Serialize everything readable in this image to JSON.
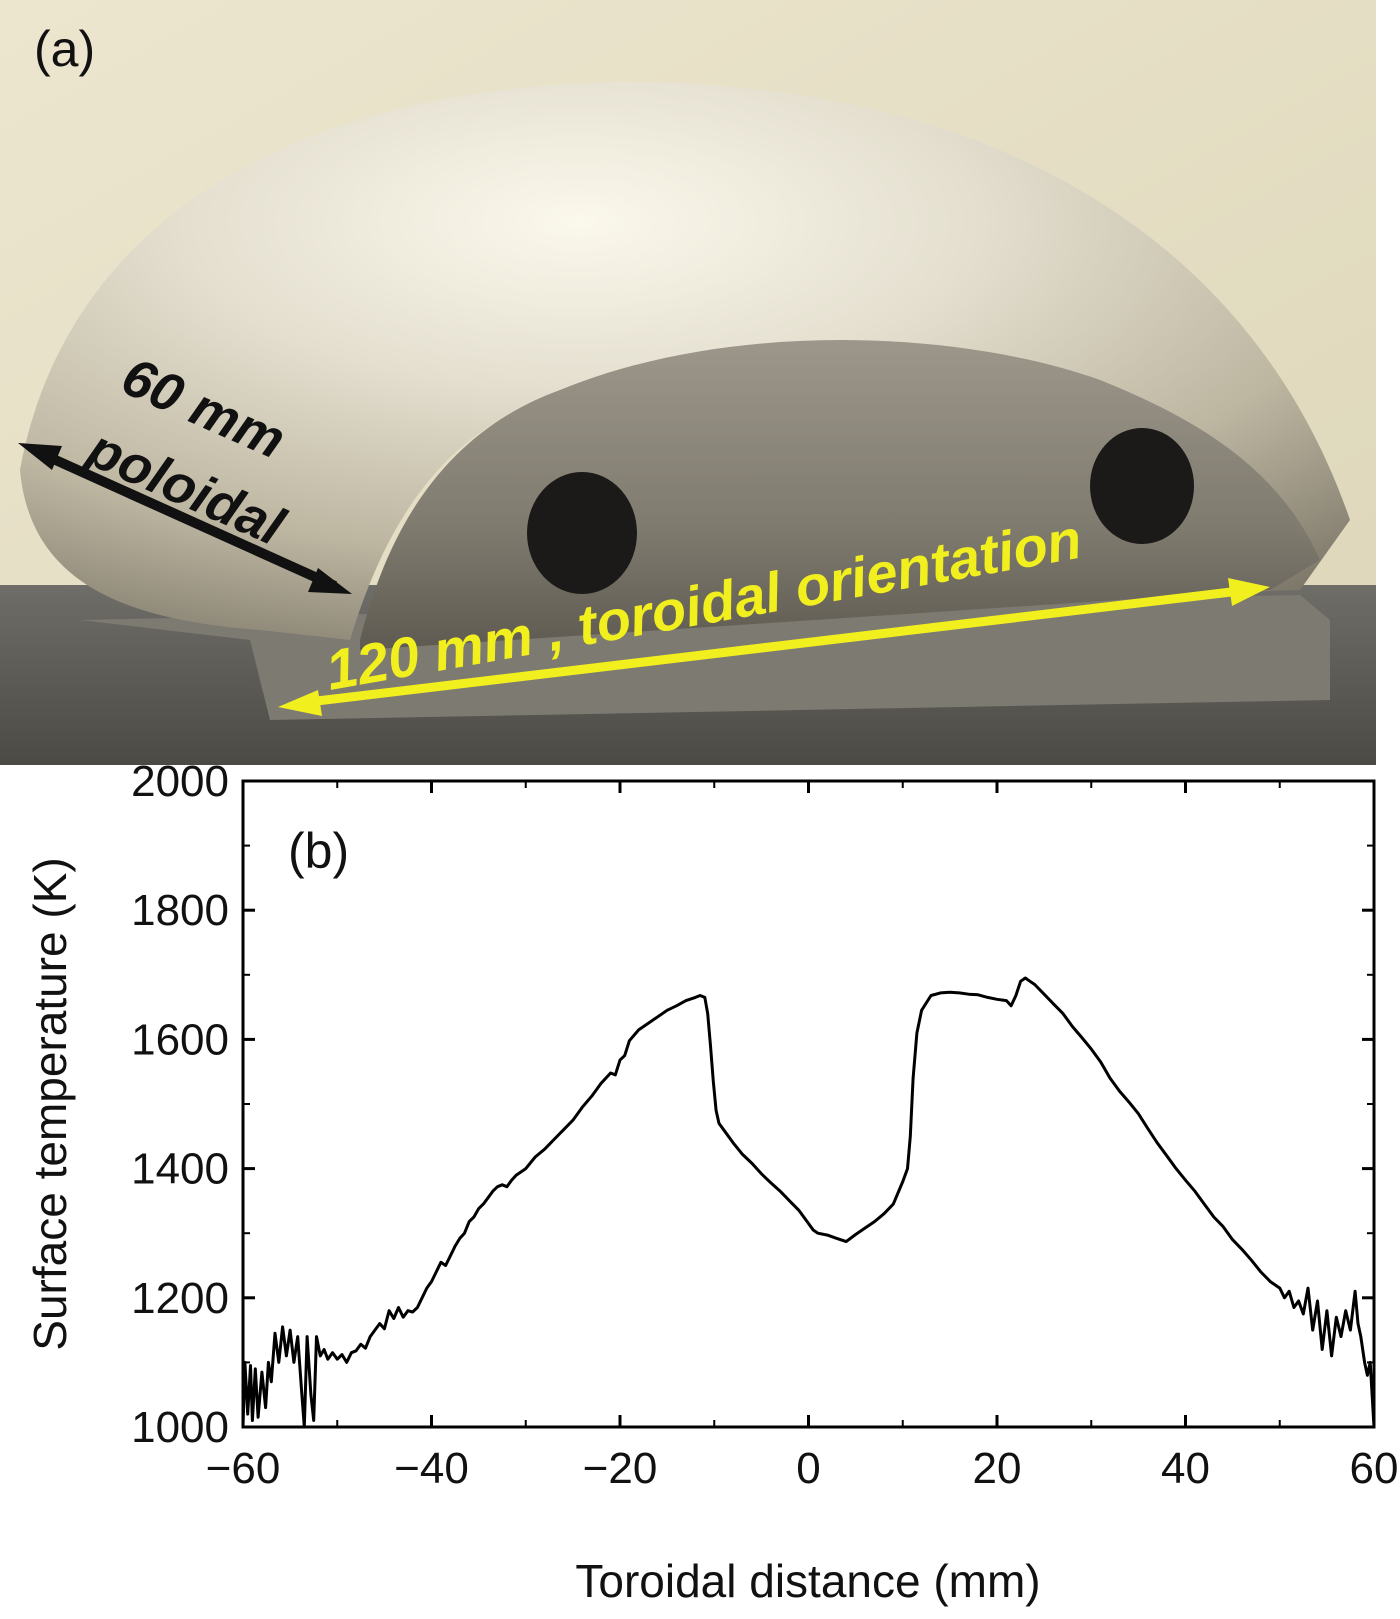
{
  "panel_a": {
    "label": "(a)",
    "poloidal_line1": "60 mm",
    "poloidal_line2": "poloidal",
    "toroidal_text": "120 mm , toroidal orientation",
    "arrow_colors": {
      "poloidal": "#111111",
      "toroidal": "#f2ef1e"
    }
  },
  "chart_data": {
    "type": "line",
    "panel_label": "(b)",
    "xlabel": "Toroidal distance (mm)",
    "ylabel": "Surface temperature (K)",
    "xlim": [
      -60,
      60
    ],
    "ylim": [
      1000,
      2000
    ],
    "x_ticks": [
      "−60",
      "−40",
      "−20",
      "0",
      "20",
      "40",
      "60"
    ],
    "y_ticks": [
      "1000",
      "1200",
      "1400",
      "1600",
      "1800",
      "2000"
    ],
    "grid": false,
    "series": [
      {
        "color": "#000000",
        "points": [
          [
            -60,
            1000
          ],
          [
            -59.8,
            1100
          ],
          [
            -59.5,
            1020
          ],
          [
            -59.2,
            1095
          ],
          [
            -59,
            1010
          ],
          [
            -58.7,
            1090
          ],
          [
            -58.4,
            1015
          ],
          [
            -58,
            1085
          ],
          [
            -57.6,
            1030
          ],
          [
            -57.3,
            1100
          ],
          [
            -57,
            1070
          ],
          [
            -56.6,
            1145
          ],
          [
            -56.2,
            1100
          ],
          [
            -55.8,
            1155
          ],
          [
            -55.4,
            1110
          ],
          [
            -55,
            1150
          ],
          [
            -54.6,
            1100
          ],
          [
            -54.2,
            1140
          ],
          [
            -53.8,
            1060
          ],
          [
            -53.5,
            1000
          ],
          [
            -53.2,
            1140
          ],
          [
            -52.8,
            1050
          ],
          [
            -52.5,
            1010
          ],
          [
            -52.2,
            1140
          ],
          [
            -51.8,
            1110
          ],
          [
            -51.4,
            1120
          ],
          [
            -51,
            1105
          ],
          [
            -50.5,
            1115
          ],
          [
            -50,
            1105
          ],
          [
            -49.5,
            1112
          ],
          [
            -49,
            1100
          ],
          [
            -48.5,
            1115
          ],
          [
            -48,
            1118
          ],
          [
            -47.5,
            1128
          ],
          [
            -47,
            1122
          ],
          [
            -46.5,
            1140
          ],
          [
            -46,
            1150
          ],
          [
            -45.5,
            1160
          ],
          [
            -45,
            1152
          ],
          [
            -44.5,
            1180
          ],
          [
            -44,
            1168
          ],
          [
            -43.5,
            1185
          ],
          [
            -43,
            1170
          ],
          [
            -42.5,
            1180
          ],
          [
            -42,
            1178
          ],
          [
            -41.5,
            1185
          ],
          [
            -41,
            1200
          ],
          [
            -40.5,
            1215
          ],
          [
            -40,
            1225
          ],
          [
            -39.5,
            1240
          ],
          [
            -39,
            1255
          ],
          [
            -38.5,
            1250
          ],
          [
            -38,
            1265
          ],
          [
            -37.5,
            1280
          ],
          [
            -37,
            1292
          ],
          [
            -36.5,
            1300
          ],
          [
            -36,
            1318
          ],
          [
            -35.5,
            1325
          ],
          [
            -35,
            1338
          ],
          [
            -34.5,
            1345
          ],
          [
            -34,
            1355
          ],
          [
            -33.5,
            1365
          ],
          [
            -33,
            1372
          ],
          [
            -32.5,
            1375
          ],
          [
            -32,
            1372
          ],
          [
            -31.5,
            1382
          ],
          [
            -31,
            1390
          ],
          [
            -30,
            1400
          ],
          [
            -29,
            1418
          ],
          [
            -28,
            1430
          ],
          [
            -27,
            1445
          ],
          [
            -26,
            1460
          ],
          [
            -25,
            1475
          ],
          [
            -24,
            1495
          ],
          [
            -23,
            1512
          ],
          [
            -22,
            1532
          ],
          [
            -21,
            1548
          ],
          [
            -20.5,
            1545
          ],
          [
            -20,
            1568
          ],
          [
            -19.5,
            1575
          ],
          [
            -19,
            1598
          ],
          [
            -18,
            1615
          ],
          [
            -17,
            1625
          ],
          [
            -16,
            1635
          ],
          [
            -15,
            1645
          ],
          [
            -14,
            1652
          ],
          [
            -13,
            1660
          ],
          [
            -12,
            1665
          ],
          [
            -11.5,
            1668
          ],
          [
            -11,
            1665
          ],
          [
            -10.7,
            1640
          ],
          [
            -10.4,
            1590
          ],
          [
            -10.1,
            1535
          ],
          [
            -9.8,
            1490
          ],
          [
            -9.5,
            1470
          ],
          [
            -9,
            1460
          ],
          [
            -8,
            1440
          ],
          [
            -7,
            1422
          ],
          [
            -6,
            1408
          ],
          [
            -5,
            1392
          ],
          [
            -4,
            1378
          ],
          [
            -3,
            1365
          ],
          [
            -2,
            1350
          ],
          [
            -1,
            1335
          ],
          [
            0,
            1315
          ],
          [
            0.5,
            1305
          ],
          [
            1,
            1300
          ],
          [
            2,
            1297
          ],
          [
            3,
            1292
          ],
          [
            4,
            1287
          ],
          [
            5,
            1298
          ],
          [
            6,
            1308
          ],
          [
            7,
            1318
          ],
          [
            8,
            1330
          ],
          [
            9,
            1345
          ],
          [
            10,
            1380
          ],
          [
            10.5,
            1400
          ],
          [
            10.8,
            1450
          ],
          [
            11.1,
            1540
          ],
          [
            11.5,
            1610
          ],
          [
            12,
            1645
          ],
          [
            13,
            1668
          ],
          [
            14,
            1672
          ],
          [
            15,
            1673
          ],
          [
            16,
            1672
          ],
          [
            17,
            1670
          ],
          [
            18,
            1669
          ],
          [
            19,
            1665
          ],
          [
            20,
            1662
          ],
          [
            21,
            1660
          ],
          [
            21.5,
            1652
          ],
          [
            22,
            1668
          ],
          [
            22.5,
            1690
          ],
          [
            23,
            1695
          ],
          [
            23.5,
            1690
          ],
          [
            24,
            1685
          ],
          [
            25,
            1670
          ],
          [
            26,
            1655
          ],
          [
            27,
            1640
          ],
          [
            28,
            1620
          ],
          [
            29,
            1603
          ],
          [
            30,
            1585
          ],
          [
            31,
            1565
          ],
          [
            32,
            1540
          ],
          [
            33,
            1520
          ],
          [
            34,
            1503
          ],
          [
            35,
            1485
          ],
          [
            36,
            1462
          ],
          [
            37,
            1440
          ],
          [
            38,
            1420
          ],
          [
            39,
            1400
          ],
          [
            40,
            1382
          ],
          [
            41,
            1365
          ],
          [
            42,
            1345
          ],
          [
            43,
            1325
          ],
          [
            44,
            1310
          ],
          [
            45,
            1290
          ],
          [
            46,
            1275
          ],
          [
            47,
            1258
          ],
          [
            48,
            1240
          ],
          [
            49,
            1225
          ],
          [
            50,
            1215
          ],
          [
            50.5,
            1200
          ],
          [
            51,
            1210
          ],
          [
            51.5,
            1185
          ],
          [
            52,
            1195
          ],
          [
            52.5,
            1175
          ],
          [
            53,
            1215
          ],
          [
            53.5,
            1150
          ],
          [
            54,
            1195
          ],
          [
            54.5,
            1120
          ],
          [
            55,
            1180
          ],
          [
            55.5,
            1110
          ],
          [
            56,
            1170
          ],
          [
            56.5,
            1140
          ],
          [
            57,
            1180
          ],
          [
            57.5,
            1150
          ],
          [
            58,
            1210
          ],
          [
            58.3,
            1160
          ],
          [
            58.6,
            1140
          ],
          [
            59,
            1100
          ],
          [
            59.3,
            1080
          ],
          [
            59.6,
            1100
          ],
          [
            60,
            1000
          ]
        ]
      }
    ]
  }
}
